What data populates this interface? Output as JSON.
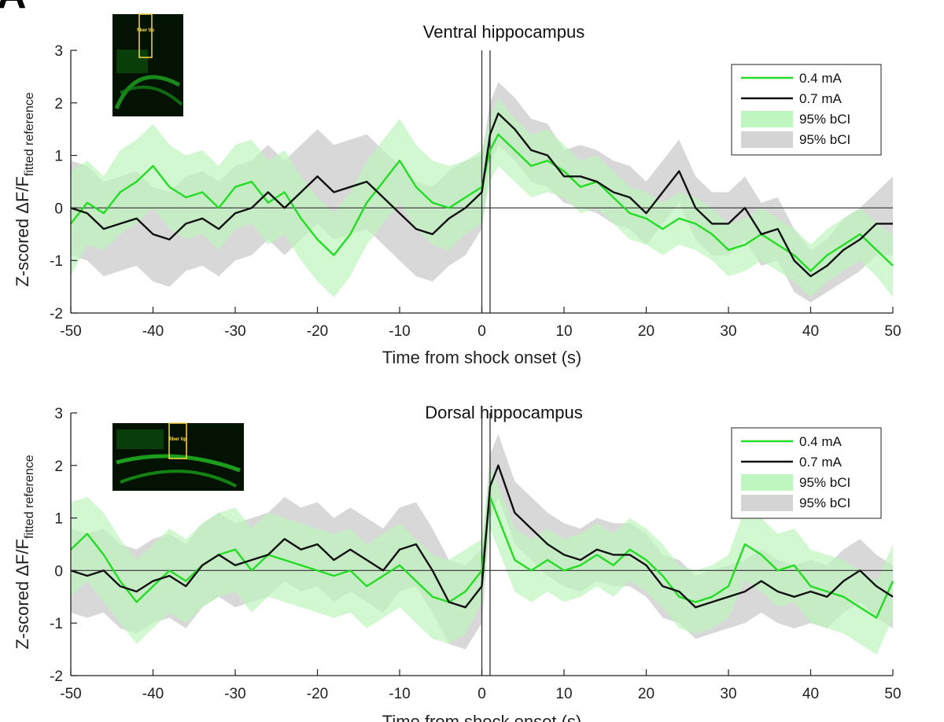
{
  "panel_letter": "A",
  "chart_data": [
    {
      "type": "line",
      "title": "Ventral hippocampus",
      "xlabel": "Time from shock onset (s)",
      "ylabel": "Z-scored ΔF/F",
      "ylabel_sub": "fitted reference",
      "xlim": [
        -50,
        50
      ],
      "ylim": [
        -2,
        3
      ],
      "xticks": [
        -50,
        -40,
        -30,
        -20,
        -10,
        0,
        10,
        20,
        30,
        40,
        50
      ],
      "yticks": [
        -2,
        -1,
        0,
        1,
        2,
        3
      ],
      "vlines": [
        0,
        1
      ],
      "inset_label": "fiber tip",
      "legend": [
        "0.4 mA",
        "0.7 mA",
        "95% bCI",
        "95% bCI"
      ],
      "legend_position": "top-right",
      "series": [
        {
          "name": "0.4 mA",
          "color": "#22dd22",
          "band_color": "#bff5bf",
          "x": [
            -50,
            -48,
            -46,
            -44,
            -42,
            -40,
            -38,
            -36,
            -34,
            -32,
            -30,
            -28,
            -26,
            -24,
            -22,
            -20,
            -18,
            -16,
            -14,
            -12,
            -10,
            -8,
            -6,
            -4,
            -2,
            0,
            1,
            2,
            4,
            6,
            8,
            10,
            12,
            14,
            16,
            18,
            20,
            22,
            24,
            26,
            28,
            30,
            32,
            34,
            36,
            38,
            40,
            42,
            44,
            46,
            48,
            50
          ],
          "values": [
            -0.3,
            0.1,
            -0.1,
            0.3,
            0.5,
            0.8,
            0.4,
            0.2,
            0.3,
            0.0,
            0.4,
            0.5,
            0.1,
            0.3,
            -0.2,
            -0.6,
            -0.9,
            -0.5,
            0.1,
            0.5,
            0.9,
            0.4,
            0.1,
            0.0,
            0.2,
            0.4,
            1.1,
            1.4,
            1.1,
            0.8,
            0.9,
            0.7,
            0.4,
            0.5,
            0.2,
            -0.1,
            -0.2,
            -0.4,
            -0.2,
            -0.3,
            -0.5,
            -0.8,
            -0.7,
            -0.5,
            -0.7,
            -0.9,
            -1.2,
            -0.9,
            -0.7,
            -0.5,
            -0.8,
            -1.1
          ],
          "ci_lower": [
            -1.3,
            -0.7,
            -0.8,
            -0.5,
            -0.3,
            0.0,
            -0.4,
            -0.6,
            -0.5,
            -0.8,
            -0.4,
            -0.3,
            -0.7,
            -0.5,
            -1.0,
            -1.4,
            -1.7,
            -1.3,
            -0.7,
            -0.3,
            0.1,
            -0.4,
            -0.7,
            -0.8,
            -0.5,
            -0.3,
            0.5,
            0.8,
            0.5,
            0.2,
            0.3,
            0.2,
            -0.1,
            0.0,
            -0.3,
            -0.6,
            -0.7,
            -0.9,
            -0.7,
            -0.8,
            -1.0,
            -1.3,
            -1.2,
            -1.0,
            -1.2,
            -1.4,
            -1.7,
            -1.4,
            -1.2,
            -1.0,
            -1.3,
            -1.7
          ],
          "ci_upper": [
            0.7,
            0.9,
            0.6,
            1.1,
            1.3,
            1.6,
            1.2,
            1.0,
            1.1,
            0.8,
            1.2,
            1.3,
            0.9,
            1.1,
            0.6,
            0.2,
            -0.1,
            0.3,
            0.9,
            1.3,
            1.7,
            1.2,
            0.9,
            0.8,
            0.9,
            1.1,
            1.7,
            2.1,
            1.7,
            1.4,
            1.5,
            1.2,
            0.9,
            1.0,
            0.7,
            0.4,
            0.3,
            0.1,
            0.3,
            0.2,
            0.0,
            -0.3,
            -0.2,
            0.0,
            -0.2,
            -0.4,
            -0.7,
            -0.4,
            -0.2,
            0.0,
            -0.3,
            -0.5
          ]
        },
        {
          "name": "0.7 mA",
          "color": "#111111",
          "band_color": "#d4d4d4",
          "x": [
            -50,
            -48,
            -46,
            -44,
            -42,
            -40,
            -38,
            -36,
            -34,
            -32,
            -30,
            -28,
            -26,
            -24,
            -22,
            -20,
            -18,
            -16,
            -14,
            -12,
            -10,
            -8,
            -6,
            -4,
            -2,
            0,
            1,
            2,
            4,
            6,
            8,
            10,
            12,
            14,
            16,
            18,
            20,
            22,
            24,
            26,
            28,
            30,
            32,
            34,
            36,
            38,
            40,
            42,
            44,
            46,
            48,
            50
          ],
          "values": [
            0.0,
            -0.1,
            -0.4,
            -0.3,
            -0.2,
            -0.5,
            -0.6,
            -0.3,
            -0.2,
            -0.4,
            -0.1,
            0.0,
            0.3,
            0.0,
            0.3,
            0.6,
            0.3,
            0.4,
            0.5,
            0.2,
            -0.1,
            -0.4,
            -0.5,
            -0.2,
            0.0,
            0.3,
            1.4,
            1.8,
            1.5,
            1.1,
            1.0,
            0.6,
            0.6,
            0.5,
            0.3,
            0.2,
            -0.1,
            0.3,
            0.7,
            0.0,
            -0.3,
            -0.3,
            0.0,
            -0.5,
            -0.4,
            -1.0,
            -1.3,
            -1.1,
            -0.8,
            -0.6,
            -0.3,
            -0.3
          ],
          "ci_lower": [
            -0.9,
            -1.0,
            -1.3,
            -1.2,
            -1.1,
            -1.4,
            -1.5,
            -1.2,
            -1.1,
            -1.3,
            -1.0,
            -0.9,
            -0.6,
            -0.9,
            -0.6,
            -0.3,
            -0.6,
            -0.5,
            -0.4,
            -0.7,
            -1.0,
            -1.3,
            -1.4,
            -1.1,
            -0.9,
            -0.4,
            0.8,
            1.2,
            0.9,
            0.5,
            0.4,
            0.1,
            0.0,
            -0.1,
            -0.3,
            -0.4,
            -0.7,
            -0.3,
            0.1,
            -0.6,
            -0.9,
            -0.9,
            -0.6,
            -1.1,
            -1.0,
            -1.6,
            -1.8,
            -1.6,
            -1.4,
            -1.2,
            -0.9,
            -0.9
          ],
          "ci_upper": [
            0.9,
            0.8,
            0.5,
            0.6,
            0.7,
            0.4,
            0.3,
            0.6,
            0.7,
            0.5,
            0.8,
            0.9,
            1.2,
            0.9,
            1.2,
            1.5,
            1.2,
            1.3,
            1.4,
            1.1,
            0.8,
            0.5,
            0.4,
            0.7,
            0.9,
            1.0,
            2.0,
            2.4,
            2.1,
            1.7,
            1.6,
            1.1,
            1.2,
            1.1,
            0.9,
            0.8,
            0.5,
            0.9,
            1.3,
            0.6,
            0.3,
            0.3,
            0.6,
            0.1,
            0.2,
            -0.4,
            -0.8,
            -0.6,
            -0.2,
            0.0,
            0.3,
            0.6
          ]
        }
      ]
    },
    {
      "type": "line",
      "title": "Dorsal hippocampus",
      "xlabel": "Time from shock onset (s)",
      "ylabel": "Z-scored ΔF/F",
      "ylabel_sub": "fitted reference",
      "xlim": [
        -50,
        50
      ],
      "ylim": [
        -2,
        3
      ],
      "xticks": [
        -50,
        -40,
        -30,
        -20,
        -10,
        0,
        10,
        20,
        30,
        40,
        50
      ],
      "yticks": [
        -2,
        -1,
        0,
        1,
        2,
        3
      ],
      "vlines": [
        0,
        1
      ],
      "inset_label": "fiber tip",
      "legend": [
        "0.4 mA",
        "0.7 mA",
        "95% bCI",
        "95% bCI"
      ],
      "legend_position": "top-right",
      "series": [
        {
          "name": "0.4 mA",
          "color": "#22dd22",
          "band_color": "#bff5bf",
          "x": [
            -50,
            -48,
            -46,
            -44,
            -42,
            -40,
            -38,
            -36,
            -34,
            -32,
            -30,
            -28,
            -26,
            -24,
            -22,
            -20,
            -18,
            -16,
            -14,
            -12,
            -10,
            -8,
            -6,
            -4,
            -2,
            0,
            1,
            2,
            4,
            6,
            8,
            10,
            12,
            14,
            16,
            18,
            20,
            22,
            24,
            26,
            28,
            30,
            32,
            34,
            36,
            38,
            40,
            42,
            44,
            46,
            48,
            50
          ],
          "values": [
            0.4,
            0.7,
            0.3,
            -0.2,
            -0.6,
            -0.3,
            0.0,
            -0.2,
            0.1,
            0.3,
            0.4,
            0.0,
            0.3,
            0.2,
            0.1,
            0.0,
            -0.1,
            0.0,
            -0.3,
            -0.1,
            0.1,
            -0.2,
            -0.5,
            -0.6,
            -0.4,
            0.0,
            1.4,
            1.0,
            0.2,
            0.0,
            0.2,
            0.0,
            0.1,
            0.3,
            0.1,
            0.4,
            0.2,
            -0.1,
            -0.5,
            -0.6,
            -0.5,
            -0.3,
            0.5,
            0.3,
            0.0,
            0.1,
            -0.3,
            -0.4,
            -0.5,
            -0.7,
            -0.9,
            -0.2
          ],
          "ci_lower": [
            -0.5,
            -0.2,
            -0.6,
            -1.0,
            -1.4,
            -1.1,
            -0.8,
            -1.0,
            -0.7,
            -0.5,
            -0.4,
            -0.8,
            -0.5,
            -0.6,
            -0.7,
            -0.8,
            -0.9,
            -0.8,
            -1.1,
            -0.9,
            -0.7,
            -1.0,
            -1.3,
            -1.4,
            -1.2,
            -0.6,
            0.8,
            0.4,
            -0.4,
            -0.6,
            -0.4,
            -0.6,
            -0.5,
            -0.3,
            -0.5,
            -0.2,
            -0.4,
            -0.7,
            -1.1,
            -1.2,
            -1.1,
            -0.9,
            -0.2,
            -0.4,
            -0.7,
            -0.6,
            -1.0,
            -1.1,
            -1.2,
            -1.4,
            -1.6,
            -0.9
          ],
          "ci_upper": [
            1.3,
            1.4,
            1.1,
            0.6,
            0.2,
            0.5,
            0.8,
            0.6,
            0.9,
            1.1,
            1.2,
            0.8,
            1.1,
            1.0,
            0.9,
            0.8,
            0.7,
            0.8,
            0.5,
            0.7,
            0.9,
            0.6,
            0.3,
            0.2,
            0.4,
            0.6,
            2.0,
            1.6,
            0.8,
            0.6,
            0.8,
            0.6,
            0.7,
            0.9,
            0.7,
            1.0,
            0.8,
            0.5,
            0.1,
            0.0,
            0.1,
            0.3,
            1.2,
            1.0,
            0.7,
            0.8,
            0.4,
            0.3,
            0.2,
            0.0,
            -0.2,
            0.5
          ]
        },
        {
          "name": "0.7 mA",
          "color": "#111111",
          "band_color": "#d4d4d4",
          "x": [
            -50,
            -48,
            -46,
            -44,
            -42,
            -40,
            -38,
            -36,
            -34,
            -32,
            -30,
            -28,
            -26,
            -24,
            -22,
            -20,
            -18,
            -16,
            -14,
            -12,
            -10,
            -8,
            -6,
            -4,
            -2,
            0,
            1,
            2,
            4,
            6,
            8,
            10,
            12,
            14,
            16,
            18,
            20,
            22,
            24,
            26,
            28,
            30,
            32,
            34,
            36,
            38,
            40,
            42,
            44,
            46,
            48,
            50
          ],
          "values": [
            0.0,
            -0.1,
            0.0,
            -0.3,
            -0.4,
            -0.2,
            -0.1,
            -0.3,
            0.1,
            0.3,
            0.1,
            0.2,
            0.3,
            0.6,
            0.4,
            0.5,
            0.2,
            0.4,
            0.2,
            0.0,
            0.4,
            0.5,
            0.0,
            -0.6,
            -0.7,
            -0.3,
            1.6,
            2.0,
            1.1,
            0.8,
            0.5,
            0.3,
            0.2,
            0.4,
            0.3,
            0.3,
            0.1,
            -0.3,
            -0.4,
            -0.7,
            -0.6,
            -0.5,
            -0.4,
            -0.2,
            -0.4,
            -0.5,
            -0.4,
            -0.5,
            -0.2,
            0.0,
            -0.3,
            -0.5
          ],
          "ci_lower": [
            -0.8,
            -0.9,
            -0.8,
            -1.1,
            -1.2,
            -1.0,
            -0.9,
            -1.1,
            -0.7,
            -0.5,
            -0.7,
            -0.6,
            -0.5,
            -0.2,
            -0.4,
            -0.3,
            -0.6,
            -0.4,
            -0.6,
            -0.8,
            -0.4,
            -0.3,
            -0.8,
            -1.4,
            -1.5,
            -1.0,
            1.0,
            1.4,
            0.5,
            0.2,
            -0.1,
            -0.3,
            -0.4,
            -0.2,
            -0.3,
            -0.3,
            -0.5,
            -0.9,
            -1.0,
            -1.3,
            -1.2,
            -1.1,
            -1.0,
            -0.8,
            -1.0,
            -1.1,
            -1.0,
            -1.1,
            -0.8,
            -0.6,
            -0.9,
            -1.1
          ],
          "ci_upper": [
            0.8,
            0.7,
            0.8,
            0.5,
            0.4,
            0.6,
            0.7,
            0.5,
            0.9,
            1.1,
            0.9,
            1.0,
            1.1,
            1.4,
            1.2,
            1.3,
            1.0,
            1.2,
            1.0,
            0.8,
            1.2,
            1.3,
            0.8,
            0.2,
            0.1,
            0.4,
            2.2,
            2.6,
            1.7,
            1.4,
            1.1,
            0.9,
            0.8,
            1.0,
            0.9,
            0.9,
            0.7,
            0.3,
            0.2,
            -0.1,
            0.0,
            0.1,
            0.2,
            0.4,
            0.2,
            0.1,
            0.2,
            0.1,
            0.4,
            0.6,
            0.3,
            0.1
          ]
        }
      ]
    }
  ]
}
